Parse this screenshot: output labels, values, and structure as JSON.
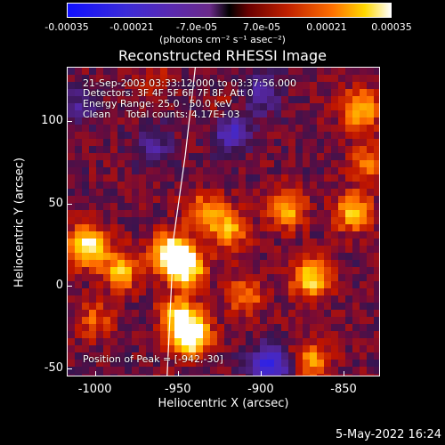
{
  "chart_data": {
    "type": "heatmap",
    "title": "Reconstructed RHESSI Image",
    "xlabel": "Heliocentric X (arcsec)",
    "ylabel": "Heliocentric Y (arcsec)",
    "xlim": [
      -1017,
      -828
    ],
    "ylim": [
      -55,
      133
    ],
    "xticks": [
      "-1000",
      "-950",
      "-900",
      "-850"
    ],
    "yticks": [
      "-50",
      "0",
      "50",
      "100"
    ],
    "colorbar": {
      "ticks": [
        "-0.00035",
        "-0.00021",
        "-7.0e-05",
        "7.0e-05",
        "0.00021",
        "0.00035"
      ],
      "unit": "(photons cm⁻² s⁻¹ asec⁻²)",
      "range": [
        -0.00035,
        0.00035
      ]
    },
    "annotations": {
      "time": "21-Sep-2003 03:33:12.000 to 03:37:56.000",
      "detectors": "Detectors: 3F 4F 5F 6F 7F 8F, Att 0",
      "energy": "Energy Range: 25.0 - 50.0 keV",
      "clean": "Clean     Total counts: 4.17E+03",
      "peak": "Position of Peak = [-942,-30]"
    },
    "hotspots": [
      {
        "x": -1005,
        "y": 25,
        "v": 0.0003
      },
      {
        "x": -985,
        "y": 10,
        "v": 0.00022
      },
      {
        "x": -955,
        "y": 20,
        "v": 0.00033
      },
      {
        "x": -945,
        "y": 12,
        "v": 0.0003
      },
      {
        "x": -942,
        "y": -30,
        "v": 0.00035
      },
      {
        "x": -950,
        "y": -18,
        "v": 0.00025
      },
      {
        "x": -935,
        "y": 45,
        "v": 0.00018
      },
      {
        "x": -920,
        "y": 35,
        "v": 0.0002
      },
      {
        "x": -910,
        "y": -5,
        "v": 0.00016
      },
      {
        "x": -885,
        "y": 48,
        "v": 0.00022
      },
      {
        "x": -870,
        "y": 5,
        "v": 0.00026
      },
      {
        "x": -845,
        "y": 45,
        "v": 0.00022
      },
      {
        "x": -840,
        "y": 108,
        "v": 0.00024
      },
      {
        "x": -835,
        "y": 75,
        "v": 0.00016
      },
      {
        "x": -870,
        "y": -45,
        "v": 0.00018
      },
      {
        "x": -1000,
        "y": -20,
        "v": 0.00012
      },
      {
        "x": -920,
        "y": 105,
        "v": 8e-05
      },
      {
        "x": -965,
        "y": 125,
        "v": 8e-05
      }
    ],
    "coldspots": [
      {
        "x": -918,
        "y": 95,
        "v": -0.00022
      },
      {
        "x": -900,
        "y": 118,
        "v": -0.00015
      },
      {
        "x": -895,
        "y": -48,
        "v": -0.00028
      },
      {
        "x": -965,
        "y": 85,
        "v": -0.00012
      },
      {
        "x": -1010,
        "y": 110,
        "v": -0.0001
      }
    ],
    "limb": [
      [
        -957,
        -55
      ],
      [
        -953,
        30
      ],
      [
        -946,
        80
      ],
      [
        -940,
        133
      ]
    ]
  },
  "timestamp": "5-May-2022 16:24"
}
